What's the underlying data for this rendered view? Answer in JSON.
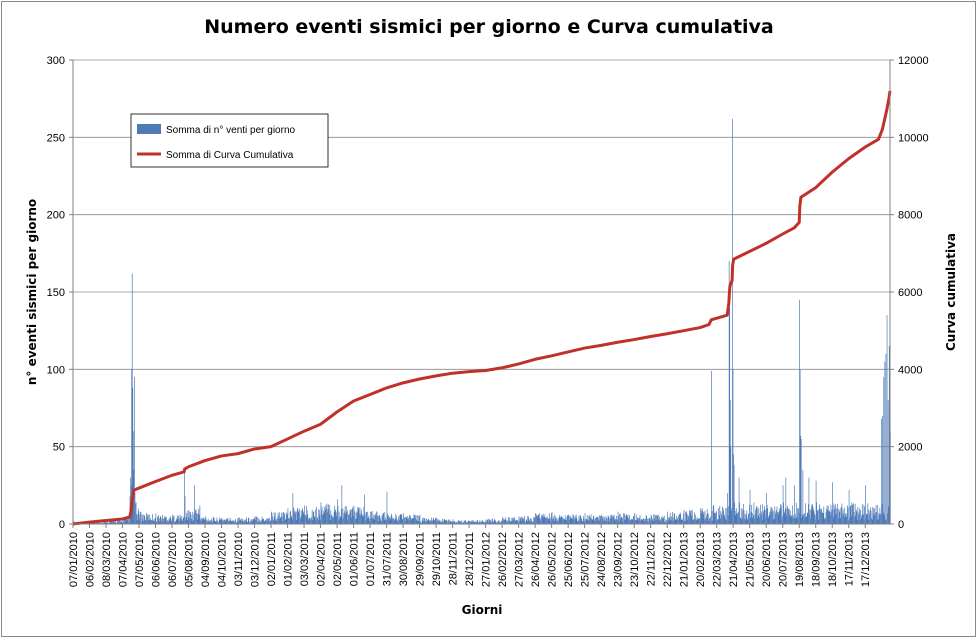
{
  "chart_data": {
    "type": "bar+line",
    "title": "Numero eventi sismici per giorno e Curva cumulativa",
    "xlabel": "Giorni",
    "ylabel_left": "n° eventi sismici per giorno",
    "ylabel_right": "Curva cumulativa",
    "ylim_left": [
      0,
      300
    ],
    "ylim_right": [
      0,
      12000
    ],
    "left_ticks": [
      0,
      50,
      100,
      150,
      200,
      250,
      300
    ],
    "right_ticks": [
      0,
      2000,
      4000,
      6000,
      8000,
      10000,
      12000
    ],
    "grid": "horizontal",
    "legend_position": "top-left",
    "x_range": [
      "2010-01-07",
      "2014-01-31"
    ],
    "x_tick_labels": [
      "07/01/2010",
      "06/02/2010",
      "08/03/2010",
      "07/04/2010",
      "07/05/2010",
      "06/06/2010",
      "06/07/2010",
      "05/08/2010",
      "04/09/2010",
      "04/10/2010",
      "03/11/2010",
      "03/12/2010",
      "02/01/2011",
      "01/02/2011",
      "03/03/2011",
      "02/04/2011",
      "02/05/2011",
      "01/06/2011",
      "01/07/2011",
      "31/07/2011",
      "30/08/2011",
      "29/09/2011",
      "29/10/2011",
      "28/11/2011",
      "28/12/2011",
      "27/01/2012",
      "26/02/2012",
      "27/03/2012",
      "26/04/2012",
      "26/05/2012",
      "25/06/2012",
      "25/07/2012",
      "24/08/2012",
      "23/09/2012",
      "23/10/2012",
      "22/11/2012",
      "22/12/2012",
      "21/01/2013",
      "20/02/2013",
      "22/03/2013",
      "21/04/2013",
      "21/05/2013",
      "20/06/2013",
      "20/07/2013",
      "19/08/2013",
      "18/09/2013",
      "18/10/2013",
      "17/11/2013",
      "17/12/2013"
    ],
    "series": [
      {
        "name": "Somma di n° venti per giorno",
        "kind": "bar",
        "axis": "left",
        "color": "#4f7ab8",
        "points": [
          [
            "2010-01-07",
            2
          ],
          [
            "2010-02-06",
            1
          ],
          [
            "2010-03-08",
            2
          ],
          [
            "2010-04-07",
            4
          ],
          [
            "2010-04-20",
            18
          ],
          [
            "2010-04-21",
            30
          ],
          [
            "2010-04-22",
            25
          ],
          [
            "2010-04-23",
            100
          ],
          [
            "2010-04-24",
            162
          ],
          [
            "2010-04-25",
            88
          ],
          [
            "2010-04-26",
            60
          ],
          [
            "2010-04-27",
            35
          ],
          [
            "2010-04-28",
            95
          ],
          [
            "2010-04-29",
            20
          ],
          [
            "2010-05-01",
            14
          ],
          [
            "2010-05-05",
            10
          ],
          [
            "2010-05-10",
            8
          ],
          [
            "2010-06-06",
            7
          ],
          [
            "2010-07-06",
            6
          ],
          [
            "2010-07-28",
            36
          ],
          [
            "2010-07-29",
            18
          ],
          [
            "2010-08-05",
            9
          ],
          [
            "2010-08-15",
            25
          ],
          [
            "2010-08-25",
            12
          ],
          [
            "2010-09-04",
            5
          ],
          [
            "2010-10-04",
            4
          ],
          [
            "2010-11-03",
            4
          ],
          [
            "2010-12-03",
            5
          ],
          [
            "2011-01-02",
            8
          ],
          [
            "2011-02-01",
            10
          ],
          [
            "2011-02-10",
            20
          ],
          [
            "2011-03-03",
            12
          ],
          [
            "2011-04-02",
            14
          ],
          [
            "2011-05-02",
            16
          ],
          [
            "2011-05-10",
            25
          ],
          [
            "2011-06-01",
            12
          ],
          [
            "2011-06-20",
            19
          ],
          [
            "2011-07-01",
            8
          ],
          [
            "2011-07-31",
            21
          ],
          [
            "2011-08-30",
            7
          ],
          [
            "2011-09-29",
            6
          ],
          [
            "2011-10-29",
            4
          ],
          [
            "2011-11-28",
            3
          ],
          [
            "2011-12-28",
            2
          ],
          [
            "2012-01-27",
            3
          ],
          [
            "2012-02-26",
            4
          ],
          [
            "2012-03-27",
            5
          ],
          [
            "2012-04-26",
            7
          ],
          [
            "2012-05-26",
            8
          ],
          [
            "2012-06-25",
            6
          ],
          [
            "2012-07-25",
            7
          ],
          [
            "2012-08-24",
            6
          ],
          [
            "2012-09-23",
            8
          ],
          [
            "2012-10-23",
            7
          ],
          [
            "2012-11-22",
            6
          ],
          [
            "2012-12-22",
            8
          ],
          [
            "2013-01-21",
            9
          ],
          [
            "2013-02-20",
            10
          ],
          [
            "2013-03-12",
            99
          ],
          [
            "2013-03-15",
            12
          ],
          [
            "2013-04-10",
            20
          ],
          [
            "2013-04-13",
            170
          ],
          [
            "2013-04-14",
            140
          ],
          [
            "2013-04-15",
            80
          ],
          [
            "2013-04-16",
            50
          ],
          [
            "2013-04-19",
            262
          ],
          [
            "2013-04-20",
            100
          ],
          [
            "2013-04-21",
            45
          ],
          [
            "2013-04-22",
            38
          ],
          [
            "2013-05-01",
            30
          ],
          [
            "2013-05-21",
            22
          ],
          [
            "2013-06-20",
            20
          ],
          [
            "2013-07-20",
            25
          ],
          [
            "2013-07-25",
            30
          ],
          [
            "2013-08-10",
            25
          ],
          [
            "2013-08-19",
            145
          ],
          [
            "2013-08-20",
            100
          ],
          [
            "2013-08-21",
            57
          ],
          [
            "2013-08-22",
            55
          ],
          [
            "2013-08-25",
            35
          ],
          [
            "2013-09-05",
            30
          ],
          [
            "2013-09-18",
            28
          ],
          [
            "2013-10-18",
            27
          ],
          [
            "2013-11-17",
            22
          ],
          [
            "2013-12-17",
            25
          ],
          [
            "2014-01-15",
            68
          ],
          [
            "2014-01-17",
            70
          ],
          [
            "2014-01-19",
            95
          ],
          [
            "2014-01-21",
            105
          ],
          [
            "2014-01-23",
            110
          ],
          [
            "2014-01-25",
            135
          ],
          [
            "2014-01-27",
            80
          ],
          [
            "2014-01-29",
            115
          ],
          [
            "2014-01-31",
            60
          ]
        ]
      },
      {
        "name": "Somma di Curva Cumulativa",
        "kind": "line",
        "axis": "right",
        "color": "#c0312a",
        "points": [
          [
            "2010-01-07",
            0
          ],
          [
            "2010-02-06",
            50
          ],
          [
            "2010-03-08",
            90
          ],
          [
            "2010-04-07",
            130
          ],
          [
            "2010-04-20",
            180
          ],
          [
            "2010-04-22",
            300
          ],
          [
            "2010-04-24",
            550
          ],
          [
            "2010-04-26",
            750
          ],
          [
            "2010-04-28",
            880
          ],
          [
            "2010-05-07",
            930
          ],
          [
            "2010-06-06",
            1100
          ],
          [
            "2010-07-06",
            1260
          ],
          [
            "2010-07-28",
            1350
          ],
          [
            "2010-07-29",
            1420
          ],
          [
            "2010-08-05",
            1480
          ],
          [
            "2010-09-04",
            1640
          ],
          [
            "2010-10-04",
            1760
          ],
          [
            "2010-11-03",
            1820
          ],
          [
            "2010-12-03",
            1940
          ],
          [
            "2011-01-02",
            2000
          ],
          [
            "2011-02-01",
            2200
          ],
          [
            "2011-03-03",
            2400
          ],
          [
            "2011-04-02",
            2580
          ],
          [
            "2011-05-02",
            2900
          ],
          [
            "2011-06-01",
            3180
          ],
          [
            "2011-07-01",
            3350
          ],
          [
            "2011-07-31",
            3520
          ],
          [
            "2011-08-30",
            3650
          ],
          [
            "2011-09-29",
            3750
          ],
          [
            "2011-10-29",
            3830
          ],
          [
            "2011-11-28",
            3900
          ],
          [
            "2011-12-28",
            3940
          ],
          [
            "2012-01-27",
            3970
          ],
          [
            "2012-02-26",
            4040
          ],
          [
            "2012-03-27",
            4140
          ],
          [
            "2012-04-26",
            4260
          ],
          [
            "2012-05-26",
            4350
          ],
          [
            "2012-06-25",
            4450
          ],
          [
            "2012-07-25",
            4550
          ],
          [
            "2012-08-24",
            4620
          ],
          [
            "2012-09-23",
            4700
          ],
          [
            "2012-10-23",
            4770
          ],
          [
            "2012-11-22",
            4850
          ],
          [
            "2012-12-22",
            4920
          ],
          [
            "2013-01-21",
            5000
          ],
          [
            "2013-02-20",
            5080
          ],
          [
            "2013-03-08",
            5160
          ],
          [
            "2013-03-12",
            5280
          ],
          [
            "2013-04-10",
            5400
          ],
          [
            "2013-04-13",
            5700
          ],
          [
            "2013-04-14",
            5950
          ],
          [
            "2013-04-15",
            6150
          ],
          [
            "2013-04-19",
            6300
          ],
          [
            "2013-04-20",
            6700
          ],
          [
            "2013-04-22",
            6850
          ],
          [
            "2013-05-21",
            7050
          ],
          [
            "2013-06-20",
            7260
          ],
          [
            "2013-07-20",
            7500
          ],
          [
            "2013-08-10",
            7660
          ],
          [
            "2013-08-19",
            7800
          ],
          [
            "2013-08-20",
            8200
          ],
          [
            "2013-08-22",
            8450
          ],
          [
            "2013-09-18",
            8700
          ],
          [
            "2013-10-18",
            9100
          ],
          [
            "2013-11-17",
            9450
          ],
          [
            "2013-12-17",
            9750
          ],
          [
            "2014-01-10",
            9950
          ],
          [
            "2014-01-17",
            10200
          ],
          [
            "2014-01-21",
            10450
          ],
          [
            "2014-01-25",
            10700
          ],
          [
            "2014-01-29",
            11000
          ],
          [
            "2014-01-31",
            11200
          ]
        ]
      }
    ]
  },
  "colors": {
    "bars": "#4f7ab8",
    "line": "#c0312a",
    "grid": "#8c8c8c",
    "frame": "#8a8a8a"
  }
}
